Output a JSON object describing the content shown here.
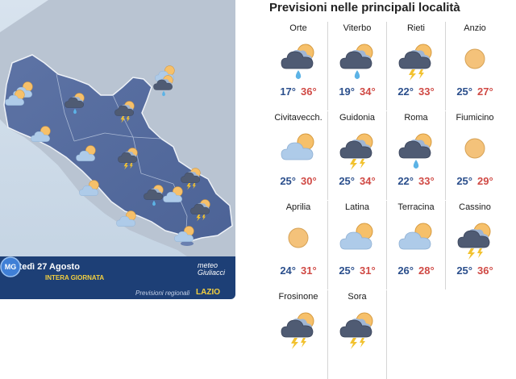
{
  "map": {
    "date": "Martedì 27 Agosto",
    "period": "INTERA GIORNATA",
    "note": "Previsioni regionali",
    "region": "LAZIO",
    "brand": {
      "line1": "meteo",
      "line2": "Giuliacci",
      "logo_text": "MG"
    },
    "colors": {
      "sea": "#cfdce9",
      "region": "#6278a8",
      "land": "#b9c4d2",
      "footer": "#1d3f76",
      "accent": "#f4d03f"
    },
    "icons": [
      "sun-cloud-icon",
      "rain-cloud-icon",
      "storm-cloud-icon",
      "sun-cloud-icon",
      "rain-cloud-icon",
      "sun-cloud-icon",
      "sun-cloud-icon",
      "storm-cloud-icon",
      "sun-cloud-icon",
      "storm-cloud-icon",
      "sun-cloud-icon",
      "rain-cloud-icon",
      "storm-cloud-icon",
      "sun-cloud-icon",
      "sun-cloud-icon",
      "sun-cloud-icon"
    ]
  },
  "grid": {
    "title": "Previsioni nelle principali località",
    "cities": [
      {
        "name": "Orte",
        "min": "17°",
        "max": "36°",
        "icon": "rain-cloud-icon"
      },
      {
        "name": "Viterbo",
        "min": "19°",
        "max": "34°",
        "icon": "rain-cloud-icon"
      },
      {
        "name": "Rieti",
        "min": "22°",
        "max": "33°",
        "icon": "storm-cloud-icon"
      },
      {
        "name": "Anzio",
        "min": "25°",
        "max": "27°",
        "icon": "sun-icon"
      },
      {
        "name": "Civitavecch.",
        "min": "25°",
        "max": "30°",
        "icon": "sun-cloud-icon"
      },
      {
        "name": "Guidonia",
        "min": "25°",
        "max": "34°",
        "icon": "storm-cloud-icon"
      },
      {
        "name": "Roma",
        "min": "22°",
        "max": "33°",
        "icon": "rain-cloud-icon"
      },
      {
        "name": "Fiumicino",
        "min": "25°",
        "max": "29°",
        "icon": "sun-icon"
      },
      {
        "name": "Aprilia",
        "min": "24°",
        "max": "31°",
        "icon": "sun-icon"
      },
      {
        "name": "Latina",
        "min": "25°",
        "max": "31°",
        "icon": "sun-cloud-icon"
      },
      {
        "name": "Terracina",
        "min": "26°",
        "max": "28°",
        "icon": "sun-cloud-icon"
      },
      {
        "name": "Cassino",
        "min": "25°",
        "max": "36°",
        "icon": "storm-cloud-icon"
      },
      {
        "name": "Frosinone",
        "min": "",
        "max": "",
        "icon": "storm-cloud-icon"
      },
      {
        "name": "Sora",
        "min": "",
        "max": "",
        "icon": "storm-cloud-icon"
      }
    ]
  }
}
